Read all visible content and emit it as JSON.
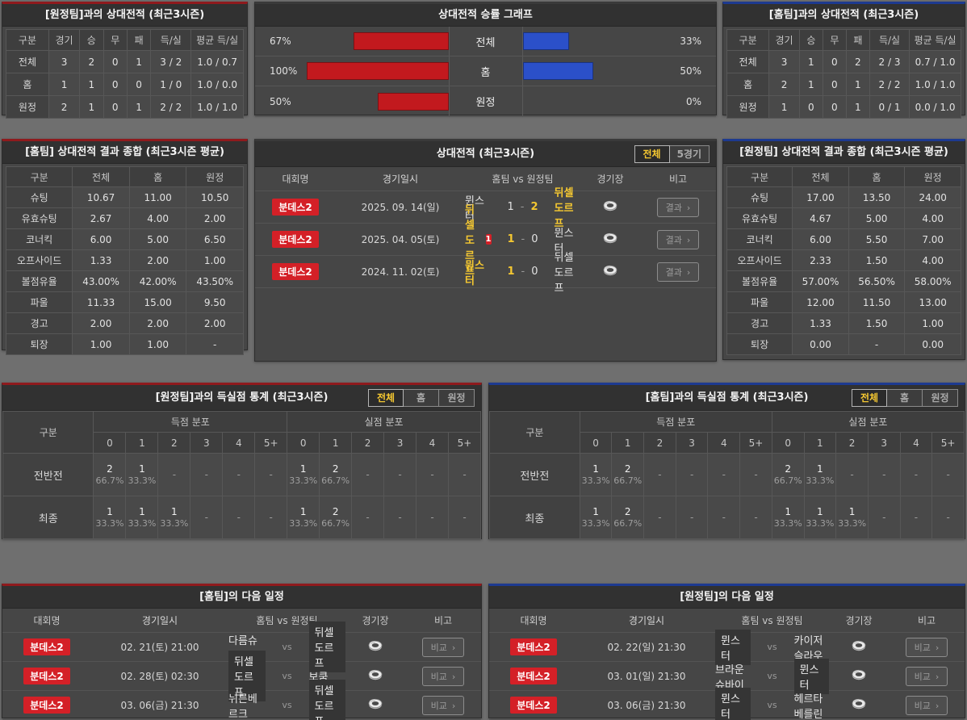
{
  "colors": {
    "home_accent": "#8f1a1d",
    "away_accent": "#1d3a90",
    "bar_red": "#c2191e",
    "bar_blue": "#2b50c9",
    "highlight_yellow": "#f5c831",
    "badge_red": "#d42027"
  },
  "panels": {
    "away_h2h": {
      "title": "[원정팀]과의 상대전적 (최근3시즌)",
      "headers": [
        "구분",
        "경기",
        "승",
        "무",
        "패",
        "득/실",
        "평균 득/실"
      ],
      "rows": [
        [
          "전체",
          "3",
          "2",
          "0",
          "1",
          "3 / 2",
          "1.0 / 0.7"
        ],
        [
          "홈",
          "1",
          "1",
          "0",
          "0",
          "1 / 0",
          "1.0 / 0.0"
        ],
        [
          "원정",
          "2",
          "1",
          "0",
          "1",
          "2 / 2",
          "1.0 / 1.0"
        ]
      ]
    },
    "winrate": {
      "title": "상대전적 승률 그래프",
      "rows": [
        {
          "label": "전체",
          "left_pct": 67,
          "left_label": "67%",
          "right_pct": 33,
          "right_label": "33%"
        },
        {
          "label": "홈",
          "left_pct": 100,
          "left_label": "100%",
          "right_pct": 50,
          "right_label": "50%"
        },
        {
          "label": "원정",
          "left_pct": 50,
          "left_label": "50%",
          "right_pct": 0,
          "right_label": "0%"
        }
      ]
    },
    "home_h2h": {
      "title": "[홈팀]과의 상대전적 (최근3시즌)",
      "headers": [
        "구분",
        "경기",
        "승",
        "무",
        "패",
        "득/실",
        "평균 득/실"
      ],
      "rows": [
        [
          "전체",
          "3",
          "1",
          "0",
          "2",
          "2 / 3",
          "0.7 / 1.0"
        ],
        [
          "홈",
          "2",
          "1",
          "0",
          "1",
          "2 / 2",
          "1.0 / 1.0"
        ],
        [
          "원정",
          "1",
          "0",
          "0",
          "1",
          "0 / 1",
          "0.0 / 1.0"
        ]
      ]
    },
    "home_summary": {
      "title": "[홈팀] 상대전적 결과 종합 (최근3시즌 평균)",
      "headers": [
        "구분",
        "전체",
        "홈",
        "원정"
      ],
      "rows": [
        [
          "슈팅",
          "10.67",
          "11.00",
          "10.50"
        ],
        [
          "유효슈팅",
          "2.67",
          "4.00",
          "2.00"
        ],
        [
          "코너킥",
          "6.00",
          "5.00",
          "6.50"
        ],
        [
          "오프사이드",
          "1.33",
          "2.00",
          "1.00"
        ],
        [
          "볼점유율",
          "43.00%",
          "42.00%",
          "43.50%"
        ],
        [
          "파울",
          "11.33",
          "15.00",
          "9.50"
        ],
        [
          "경고",
          "2.00",
          "2.00",
          "2.00"
        ],
        [
          "퇴장",
          "1.00",
          "1.00",
          "-"
        ]
      ]
    },
    "matches": {
      "title": "상대전적 (최근3시즌)",
      "toggles": [
        {
          "label": "전체",
          "selected": true
        },
        {
          "label": "5경기",
          "selected": false
        }
      ],
      "headers": {
        "league": "대회명",
        "date": "경기일시",
        "teams": "홈팀  vs  원정팀",
        "stadium": "경기장",
        "note": "비고"
      },
      "button_label": "결과",
      "chevron": "›",
      "score_sep": "-",
      "rows": [
        {
          "league": "분데스2",
          "date": "2025. 09. 14(일)",
          "home": "뮌스터",
          "home_win": false,
          "home_red_card": "",
          "score_home": "1",
          "score_away": "2",
          "away": "뒤셀도르프",
          "away_win": true
        },
        {
          "league": "분데스2",
          "date": "2025. 04. 05(토)",
          "home": "뒤셀도르프",
          "home_win": true,
          "home_red_card": "1",
          "score_home": "1",
          "score_away": "0",
          "away": "뮌스터",
          "away_win": false
        },
        {
          "league": "분데스2",
          "date": "2024. 11. 02(토)",
          "home": "뮌스터",
          "home_win": true,
          "home_red_card": "",
          "score_home": "1",
          "score_away": "0",
          "away": "뒤셀도르프",
          "away_win": false
        }
      ]
    },
    "away_summary": {
      "title": "[원정팀] 상대전적 결과 종합 (최근3시즌 평균)",
      "headers": [
        "구분",
        "전체",
        "홈",
        "원정"
      ],
      "rows": [
        [
          "슈팅",
          "17.00",
          "13.50",
          "24.00"
        ],
        [
          "유효슈팅",
          "4.67",
          "5.00",
          "4.00"
        ],
        [
          "코너킥",
          "6.00",
          "5.50",
          "7.00"
        ],
        [
          "오프사이드",
          "2.33",
          "1.50",
          "4.00"
        ],
        [
          "볼점유율",
          "57.00%",
          "56.50%",
          "58.00%"
        ],
        [
          "파울",
          "12.00",
          "11.50",
          "13.00"
        ],
        [
          "경고",
          "1.33",
          "1.50",
          "1.00"
        ],
        [
          "퇴장",
          "0.00",
          "-",
          "0.00"
        ]
      ]
    },
    "goals_away": {
      "title": "[원정팀]과의 득실점 통계 (최근3시즌)",
      "toggles": [
        {
          "label": "전체",
          "selected": true
        },
        {
          "label": "홈",
          "selected": false
        },
        {
          "label": "원정",
          "selected": false
        }
      ],
      "col_header": "구분",
      "group_headers": [
        "득점 분포",
        "실점 분포"
      ],
      "bins": [
        "0",
        "1",
        "2",
        "3",
        "4",
        "5+"
      ],
      "empty": "-",
      "rows": [
        {
          "label": "전반전",
          "scored": [
            {
              "count": "2",
              "pct": "66.7%"
            },
            {
              "count": "1",
              "pct": "33.3%"
            },
            null,
            null,
            null,
            null
          ],
          "conceded": [
            {
              "count": "1",
              "pct": "33.3%"
            },
            {
              "count": "2",
              "pct": "66.7%"
            },
            null,
            null,
            null,
            null
          ]
        },
        {
          "label": "최종",
          "scored": [
            {
              "count": "1",
              "pct": "33.3%"
            },
            {
              "count": "1",
              "pct": "33.3%"
            },
            {
              "count": "1",
              "pct": "33.3%"
            },
            null,
            null,
            null
          ],
          "conceded": [
            {
              "count": "1",
              "pct": "33.3%"
            },
            {
              "count": "2",
              "pct": "66.7%"
            },
            null,
            null,
            null,
            null
          ]
        }
      ]
    },
    "goals_home": {
      "title": "[홈팀]과의 득실점 통계 (최근3시즌)",
      "toggles": [
        {
          "label": "전체",
          "selected": true
        },
        {
          "label": "홈",
          "selected": false
        },
        {
          "label": "원정",
          "selected": false
        }
      ],
      "col_header": "구분",
      "group_headers": [
        "득점 분포",
        "실점 분포"
      ],
      "bins": [
        "0",
        "1",
        "2",
        "3",
        "4",
        "5+"
      ],
      "empty": "-",
      "rows": [
        {
          "label": "전반전",
          "scored": [
            {
              "count": "1",
              "pct": "33.3%"
            },
            {
              "count": "2",
              "pct": "66.7%"
            },
            null,
            null,
            null,
            null
          ],
          "conceded": [
            {
              "count": "2",
              "pct": "66.7%"
            },
            {
              "count": "1",
              "pct": "33.3%"
            },
            null,
            null,
            null,
            null
          ]
        },
        {
          "label": "최종",
          "scored": [
            {
              "count": "1",
              "pct": "33.3%"
            },
            {
              "count": "2",
              "pct": "66.7%"
            },
            null,
            null,
            null,
            null
          ],
          "conceded": [
            {
              "count": "1",
              "pct": "33.3%"
            },
            {
              "count": "1",
              "pct": "33.3%"
            },
            {
              "count": "1",
              "pct": "33.3%"
            },
            null,
            null,
            null
          ]
        }
      ]
    },
    "home_schedule": {
      "title": "[홈팀]의 다음 일정",
      "headers": {
        "league": "대회명",
        "date": "경기일시",
        "teams": "홈팀  vs  원정팀",
        "stadium": "경기장",
        "note": "비고"
      },
      "button_label": "비교",
      "chevron": "›",
      "vs_label": "vs",
      "rows": [
        {
          "league": "분데스2",
          "date": "02. 21(토) 21:00",
          "home": "다름슈타트",
          "home_hl": false,
          "away": "뒤셀도르프",
          "away_hl": true
        },
        {
          "league": "분데스2",
          "date": "02. 28(토) 02:30",
          "home": "뒤셀도르프",
          "home_hl": true,
          "away": "보쿰",
          "away_hl": false
        },
        {
          "league": "분데스2",
          "date": "03. 06(금) 21:30",
          "home": "뉘른베르크",
          "home_hl": false,
          "away": "뒤셀도르프",
          "away_hl": true
        }
      ]
    },
    "away_schedule": {
      "title": "[원정팀]의 다음 일정",
      "headers": {
        "league": "대회명",
        "date": "경기일시",
        "teams": "홈팀  vs  원정팀",
        "stadium": "경기장",
        "note": "비고"
      },
      "button_label": "비교",
      "chevron": "›",
      "vs_label": "vs",
      "rows": [
        {
          "league": "분데스2",
          "date": "02. 22(일) 21:30",
          "home": "뮌스터",
          "home_hl": true,
          "away": "카이저슬라우",
          "away_hl": false
        },
        {
          "league": "분데스2",
          "date": "03. 01(일) 21:30",
          "home": "브라운슈바이",
          "home_hl": false,
          "away": "뮌스터",
          "away_hl": true
        },
        {
          "league": "분데스2",
          "date": "03. 06(금) 21:30",
          "home": "뮌스터",
          "home_hl": true,
          "away": "헤르타베를린",
          "away_hl": false
        }
      ]
    }
  }
}
